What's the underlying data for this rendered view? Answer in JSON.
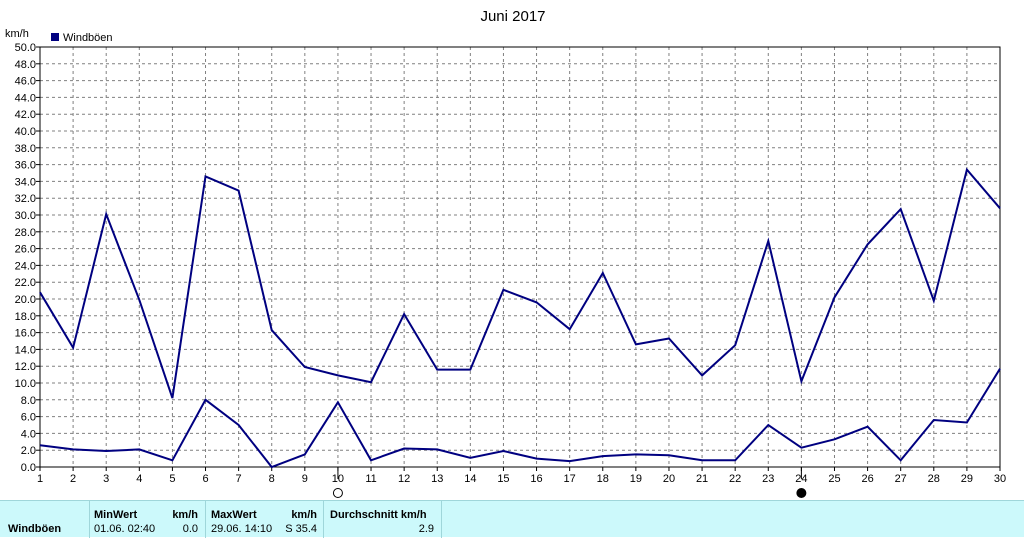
{
  "chart_data": {
    "type": "line",
    "title": "Juni 2017",
    "ylabel": "km/h",
    "ylim": [
      0,
      50
    ],
    "y_step": 2,
    "grid": true,
    "legend_position": "top-left",
    "legend_color": "#000080",
    "x": [
      1,
      2,
      3,
      4,
      5,
      6,
      7,
      8,
      9,
      10,
      11,
      12,
      13,
      14,
      15,
      16,
      17,
      18,
      19,
      20,
      21,
      22,
      23,
      24,
      25,
      26,
      27,
      28,
      29,
      30
    ],
    "series": [
      {
        "name": "Windböen",
        "role": "daily maximum",
        "color": "#000080",
        "values": [
          20.8,
          14.2,
          30.1,
          19.9,
          8.2,
          34.6,
          32.9,
          16.3,
          11.9,
          10.9,
          10.1,
          18.2,
          11.6,
          11.6,
          21.1,
          19.6,
          16.4,
          23.1,
          14.6,
          15.3,
          10.9,
          14.5,
          26.9,
          10.2,
          20.2,
          26.5,
          30.7,
          19.8,
          35.4,
          30.8
        ]
      },
      {
        "name": "Windböen",
        "role": "daily average",
        "color": "#000080",
        "values": [
          2.6,
          2.1,
          1.9,
          2.1,
          0.8,
          8.0,
          5.0,
          0.0,
          1.5,
          7.7,
          0.8,
          2.2,
          2.1,
          1.1,
          1.9,
          1.0,
          0.7,
          1.3,
          1.5,
          1.4,
          0.8,
          0.8,
          5.0,
          2.3,
          3.3,
          4.8,
          0.8,
          5.6,
          5.3,
          11.7
        ]
      }
    ],
    "moon_markers": [
      {
        "day": 10,
        "phase": "full-moon"
      },
      {
        "day": 24,
        "phase": "new-moon"
      }
    ]
  },
  "stats": {
    "row_label": "Windböen",
    "min_header": "MinWert",
    "unit_header": "km/h",
    "min_time": "01.06.  02:40",
    "min_value": "0.0",
    "max_header": "MaxWert",
    "max_time": "29.06.  14:10",
    "max_value": "S 35.4",
    "avg_header": "Durchschnitt km/h",
    "avg_value": "2.9"
  }
}
